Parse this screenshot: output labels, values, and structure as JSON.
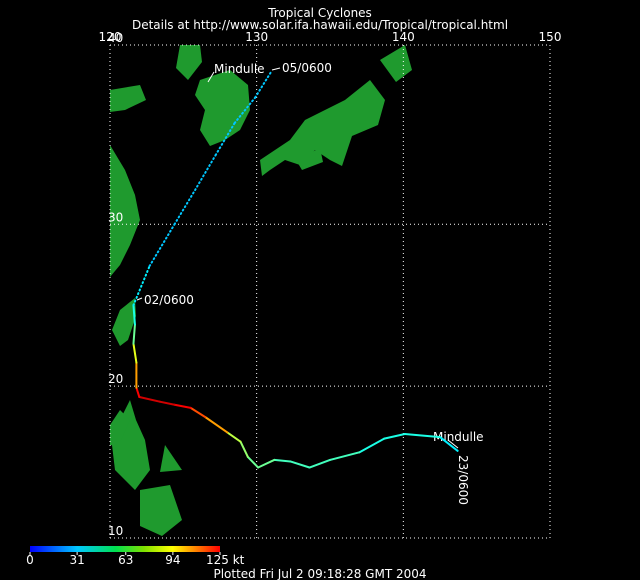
{
  "title": "Tropical Cyclones",
  "subtitle": "Details at http://www.solar.ifa.hawaii.edu/Tropical/tropical.html",
  "map": {
    "lon_range": [
      120,
      150
    ],
    "lat_range": [
      10,
      40
    ],
    "lon_ticks": [
      120,
      130,
      140,
      150
    ],
    "lat_ticks": [
      10,
      20,
      30,
      40
    ],
    "grid": true
  },
  "track": [
    {
      "lon": 143.7,
      "lat": 15.8,
      "kt": 45
    },
    {
      "lon": 142.5,
      "lat": 16.7,
      "kt": 45
    },
    {
      "lon": 140.1,
      "lat": 16.9,
      "kt": 50
    },
    {
      "lon": 138.7,
      "lat": 16.6,
      "kt": 50
    },
    {
      "lon": 137.0,
      "lat": 15.7,
      "kt": 50
    },
    {
      "lon": 135.0,
      "lat": 15.2,
      "kt": 55
    },
    {
      "lon": 133.6,
      "lat": 14.7,
      "kt": 55
    },
    {
      "lon": 132.3,
      "lat": 15.1,
      "kt": 55
    },
    {
      "lon": 131.2,
      "lat": 15.2,
      "kt": 55
    },
    {
      "lon": 130.1,
      "lat": 14.7,
      "kt": 60
    },
    {
      "lon": 129.4,
      "lat": 15.4,
      "kt": 60
    },
    {
      "lon": 128.9,
      "lat": 16.4,
      "kt": 65
    },
    {
      "lon": 128.0,
      "lat": 17.0,
      "kt": 70
    },
    {
      "lon": 126.5,
      "lat": 18.0,
      "kt": 90
    },
    {
      "lon": 125.5,
      "lat": 18.6,
      "kt": 100
    },
    {
      "lon": 124.4,
      "lat": 18.8,
      "kt": 110
    },
    {
      "lon": 123.4,
      "lat": 19.0,
      "kt": 115
    },
    {
      "lon": 122.0,
      "lat": 19.3,
      "kt": 115
    },
    {
      "lon": 121.8,
      "lat": 19.9,
      "kt": 110
    },
    {
      "lon": 121.8,
      "lat": 21.5,
      "kt": 90
    },
    {
      "lon": 121.6,
      "lat": 22.7,
      "kt": 75
    },
    {
      "lon": 121.7,
      "lat": 23.9,
      "kt": 60
    },
    {
      "lon": 121.6,
      "lat": 25.1,
      "kt": 50
    }
  ],
  "dotted_track": [
    {
      "lon": 121.6,
      "lat": 25.1,
      "kt": 45
    },
    {
      "lon": 122.7,
      "lat": 27.5,
      "kt": 45
    },
    {
      "lon": 124.4,
      "lat": 30.0,
      "kt": 40
    },
    {
      "lon": 125.8,
      "lat": 32.0,
      "kt": 40
    },
    {
      "lon": 127.2,
      "lat": 34.0,
      "kt": 40
    },
    {
      "lon": 128.5,
      "lat": 35.8,
      "kt": 40
    },
    {
      "lon": 129.9,
      "lat": 37.2,
      "kt": 40
    },
    {
      "lon": 131.0,
      "lat": 38.6,
      "kt": 40
    }
  ],
  "annotations": [
    "Mindulle",
    "23/0600",
    "02/0600",
    "Mindulle",
    "05/0600"
  ],
  "colorbar": {
    "range": [
      0,
      125
    ],
    "ticks": [
      0,
      31,
      63,
      94,
      {
        "value": 125,
        "label": "125 kt"
      }
    ]
  },
  "footer": "Plotted Fri Jul 2 09:18:28 GMT 2004"
}
